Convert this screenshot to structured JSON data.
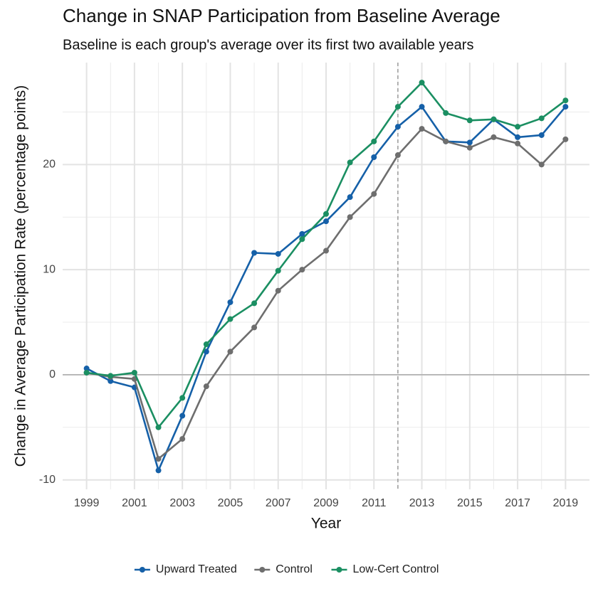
{
  "chart_data": {
    "type": "line",
    "title": "Change in SNAP Participation from Baseline Average",
    "subtitle": "Baseline is each group's average over its first two available years",
    "x_label": "Year",
    "y_label": "Change in Average Participation Rate (percentage points)",
    "x": [
      1999,
      2000,
      2001,
      2002,
      2003,
      2004,
      2005,
      2006,
      2007,
      2008,
      2009,
      2010,
      2011,
      2012,
      2013,
      2014,
      2015,
      2016,
      2017,
      2018,
      2019
    ],
    "series": [
      {
        "name": "Upward Treated",
        "color": "#1560a8",
        "values": [
          0.6,
          -0.6,
          -1.2,
          -9.1,
          -3.9,
          2.2,
          6.9,
          11.6,
          11.5,
          13.4,
          14.6,
          16.9,
          20.7,
          23.6,
          25.5,
          22.2,
          22.1,
          24.3,
          22.6,
          22.8,
          25.5
        ]
      },
      {
        "name": "Control",
        "color": "#6e6e6e",
        "values": [
          0.2,
          -0.2,
          -0.4,
          -8.0,
          -6.1,
          -1.1,
          2.2,
          4.5,
          8.0,
          10.0,
          11.8,
          15.0,
          17.2,
          20.9,
          23.4,
          22.2,
          21.6,
          22.6,
          22.0,
          20.0,
          22.4
        ]
      },
      {
        "name": "Low-Cert Control",
        "color": "#1b8f62",
        "values": [
          0.2,
          -0.1,
          0.2,
          -5.0,
          -2.2,
          2.9,
          5.3,
          6.8,
          9.9,
          12.9,
          15.3,
          20.2,
          22.2,
          25.5,
          27.8,
          24.9,
          24.2,
          24.3,
          23.6,
          24.4,
          26.1
        ]
      }
    ],
    "xlim": [
      1998,
      2020
    ],
    "xticks": [
      1999,
      2001,
      2003,
      2005,
      2007,
      2009,
      2011,
      2013,
      2015,
      2017,
      2019
    ],
    "ylim": [
      -10.9,
      29.7
    ],
    "yticks": [
      -10,
      0,
      10,
      20
    ],
    "hline": 0,
    "vline": 2012,
    "grid": true,
    "legend": "bottom"
  }
}
